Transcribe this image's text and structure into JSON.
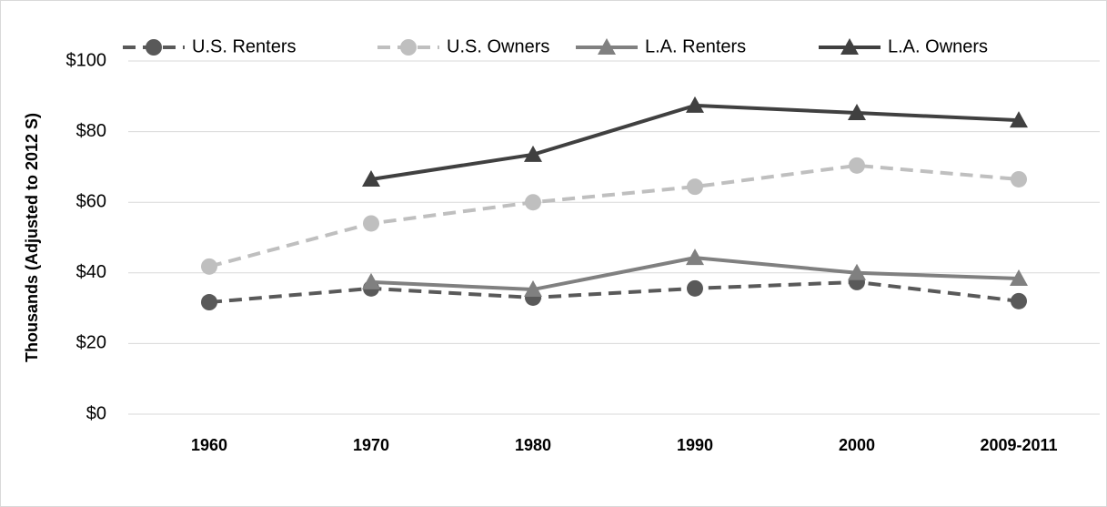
{
  "chart_data": {
    "type": "line",
    "y_label": "Thousands (Adjusted to 2012 S)",
    "categories": [
      "1960",
      "1970",
      "1980",
      "1990",
      "2000",
      "2009-2011"
    ],
    "series": [
      {
        "name": "U.S. Renters",
        "color": "#595959",
        "dashed": true,
        "marker": "circle",
        "values": [
          31.7,
          35.6,
          33,
          35.6,
          37.4,
          32
        ]
      },
      {
        "name": "U.S. Owners",
        "color": "#bfbfbf",
        "dashed": true,
        "marker": "circle",
        "values": [
          41.8,
          54,
          60,
          64.4,
          70.4,
          66.5
        ]
      },
      {
        "name": "L.A. Renters",
        "color": "#808080",
        "dashed": false,
        "marker": "triangle",
        "values": [
          null,
          37.4,
          35.3,
          44.3,
          40,
          38.4
        ]
      },
      {
        "name": "L.A. Owners",
        "color": "#404040",
        "dashed": false,
        "marker": "triangle",
        "values": [
          null,
          66.5,
          73.5,
          87.4,
          85.3,
          83.2
        ]
      }
    ],
    "ylim": [
      0,
      100
    ],
    "yticks": [
      {
        "value": 0,
        "label": "$0"
      },
      {
        "value": 20,
        "label": "$20"
      },
      {
        "value": 40,
        "label": "$40"
      },
      {
        "value": 60,
        "label": "$60"
      },
      {
        "value": 80,
        "label": "$80"
      },
      {
        "value": 100,
        "label": "$100"
      }
    ],
    "grid": true,
    "legend": "top"
  }
}
